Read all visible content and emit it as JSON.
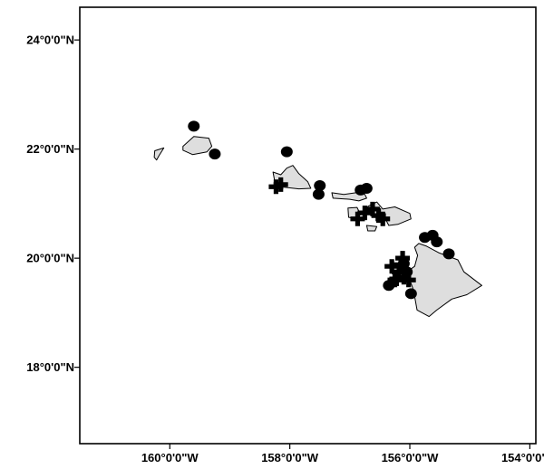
{
  "map": {
    "projection": "geographic",
    "lon_range": [
      -161.5,
      -153.9
    ],
    "lat_range": [
      16.6,
      24.6
    ],
    "colors": {
      "land_fill": "#dedede",
      "land_stroke": "#000000",
      "frame": "#000000",
      "markers": "#000000"
    },
    "y_axis": {
      "ticks": [
        {
          "value": 24,
          "label": "24°0'0\"N"
        },
        {
          "value": 22,
          "label": "22°0'0\"N"
        },
        {
          "value": 20,
          "label": "20°0'0\"N"
        },
        {
          "value": 18,
          "label": "18°0'0\"N"
        }
      ]
    },
    "x_axis": {
      "ticks": [
        {
          "value": -160,
          "label": "160°0'0\"W"
        },
        {
          "value": -158,
          "label": "158°0'0\"W"
        },
        {
          "value": -156,
          "label": "156°0'0\"W"
        },
        {
          "value": -154,
          "label": "154°0'0\"W"
        }
      ]
    },
    "islands": [
      {
        "name": "niihau",
        "coords": [
          [
            -160.25,
            21.97
          ],
          [
            -160.1,
            22.02
          ],
          [
            -160.18,
            21.88
          ],
          [
            -160.22,
            21.8
          ],
          [
            -160.26,
            21.85
          ]
        ]
      },
      {
        "name": "kauai",
        "coords": [
          [
            -159.78,
            22.05
          ],
          [
            -159.6,
            22.23
          ],
          [
            -159.35,
            22.2
          ],
          [
            -159.3,
            22.05
          ],
          [
            -159.38,
            21.95
          ],
          [
            -159.62,
            21.9
          ],
          [
            -159.78,
            21.98
          ]
        ]
      },
      {
        "name": "oahu",
        "coords": [
          [
            -158.28,
            21.58
          ],
          [
            -158.15,
            21.53
          ],
          [
            -158.05,
            21.65
          ],
          [
            -157.95,
            21.7
          ],
          [
            -157.85,
            21.55
          ],
          [
            -157.7,
            21.4
          ],
          [
            -157.65,
            21.28
          ],
          [
            -157.85,
            21.27
          ],
          [
            -158.1,
            21.3
          ],
          [
            -158.25,
            21.4
          ]
        ]
      },
      {
        "name": "molokai",
        "coords": [
          [
            -157.3,
            21.2
          ],
          [
            -157.1,
            21.17
          ],
          [
            -156.9,
            21.2
          ],
          [
            -156.75,
            21.17
          ],
          [
            -156.72,
            21.1
          ],
          [
            -156.85,
            21.05
          ],
          [
            -157.0,
            21.08
          ],
          [
            -157.28,
            21.1
          ]
        ]
      },
      {
        "name": "lanai",
        "coords": [
          [
            -157.03,
            20.92
          ],
          [
            -156.88,
            20.93
          ],
          [
            -156.82,
            20.8
          ],
          [
            -156.9,
            20.72
          ],
          [
            -157.02,
            20.75
          ]
        ]
      },
      {
        "name": "kahoolawe",
        "coords": [
          [
            -156.72,
            20.6
          ],
          [
            -156.55,
            20.58
          ],
          [
            -156.58,
            20.5
          ],
          [
            -156.7,
            20.5
          ]
        ]
      },
      {
        "name": "maui",
        "coords": [
          [
            -156.7,
            20.95
          ],
          [
            -156.55,
            21.03
          ],
          [
            -156.45,
            20.9
          ],
          [
            -156.25,
            20.94
          ],
          [
            -156.0,
            20.82
          ],
          [
            -155.98,
            20.72
          ],
          [
            -156.2,
            20.62
          ],
          [
            -156.35,
            20.6
          ],
          [
            -156.42,
            20.75
          ],
          [
            -156.55,
            20.78
          ],
          [
            -156.68,
            20.82
          ]
        ]
      },
      {
        "name": "hawaii",
        "coords": [
          [
            -155.85,
            20.27
          ],
          [
            -155.72,
            20.22
          ],
          [
            -155.52,
            20.1
          ],
          [
            -155.2,
            19.97
          ],
          [
            -155.1,
            19.75
          ],
          [
            -154.8,
            19.5
          ],
          [
            -155.05,
            19.33
          ],
          [
            -155.3,
            19.25
          ],
          [
            -155.55,
            19.05
          ],
          [
            -155.68,
            18.93
          ],
          [
            -155.88,
            19.05
          ],
          [
            -155.92,
            19.3
          ],
          [
            -155.95,
            19.45
          ],
          [
            -156.05,
            19.75
          ],
          [
            -155.92,
            19.85
          ],
          [
            -155.87,
            20.05
          ],
          [
            -155.92,
            20.2
          ]
        ]
      }
    ],
    "dots": [
      [
        -159.6,
        22.42
      ],
      [
        -159.25,
        21.91
      ],
      [
        -158.05,
        21.95
      ],
      [
        -157.5,
        21.33
      ],
      [
        -157.52,
        21.17
      ],
      [
        -156.82,
        21.25
      ],
      [
        -156.72,
        21.28
      ],
      [
        -156.35,
        19.5
      ],
      [
        -155.98,
        19.35
      ],
      [
        -155.75,
        20.38
      ],
      [
        -155.62,
        20.42
      ],
      [
        -155.55,
        20.3
      ],
      [
        -155.35,
        20.08
      ],
      [
        -156.1,
        19.9
      ],
      [
        -156.05,
        19.75
      ]
    ],
    "crosses": [
      [
        -158.23,
        21.31
      ],
      [
        -158.15,
        21.35
      ],
      [
        -156.87,
        20.72
      ],
      [
        -156.75,
        20.83
      ],
      [
        -156.62,
        20.9
      ],
      [
        -156.52,
        20.78
      ],
      [
        -156.45,
        20.72
      ],
      [
        -156.3,
        19.85
      ],
      [
        -156.18,
        19.75
      ],
      [
        -156.12,
        20.0
      ],
      [
        -156.22,
        19.62
      ],
      [
        -156.1,
        19.65
      ],
      [
        -156.02,
        19.6
      ],
      [
        -156.15,
        19.88
      ],
      [
        -156.25,
        19.6
      ]
    ]
  }
}
